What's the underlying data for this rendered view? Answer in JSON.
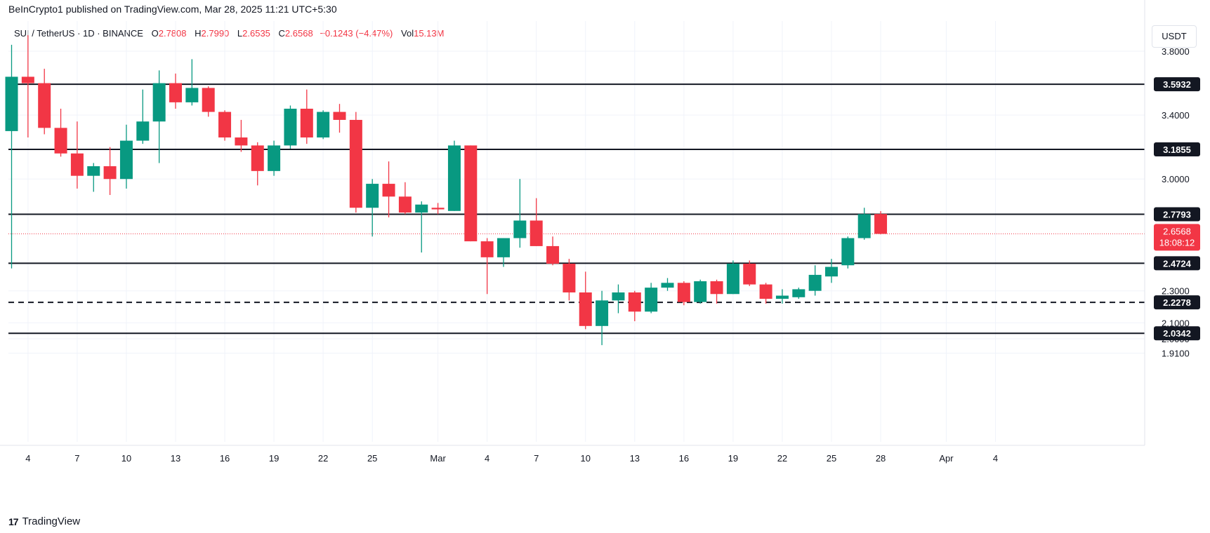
{
  "header": {
    "published_text": "BeInCrypto1 published on TradingView.com, Mar 28, 2025 11:21 UTC+5:30"
  },
  "legend": {
    "symbol": "SUI / TetherUS · 1D · BINANCE",
    "o_label": "O",
    "o_value": "2.7808",
    "h_label": "H",
    "h_value": "2.7990",
    "l_label": "L",
    "l_value": "2.6535",
    "c_label": "C",
    "c_value": "2.6568",
    "change": "−0.1243 (−4.47%)",
    "vol_label": "Vol",
    "vol_value": "15.13M"
  },
  "price_unit": "USDT",
  "footer": {
    "logo_text": "TradingView",
    "logo_mark": "17"
  },
  "colors": {
    "up": "#089981",
    "down": "#f23645",
    "line": "#131722",
    "grid": "#f0f3fa"
  },
  "chart_data": {
    "type": "candlestick",
    "ylim": [
      1.83,
      3.96
    ],
    "yticks": [
      "3.8000",
      "3.4000",
      "3.0000",
      "2.3000",
      "2.1000",
      "2.0000",
      "1.9100"
    ],
    "xticks": [
      {
        "label": "4",
        "day": 4
      },
      {
        "label": "7",
        "day": 7
      },
      {
        "label": "10",
        "day": 10
      },
      {
        "label": "13",
        "day": 13
      },
      {
        "label": "16",
        "day": 16
      },
      {
        "label": "19",
        "day": 19
      },
      {
        "label": "22",
        "day": 22
      },
      {
        "label": "25",
        "day": 25
      },
      {
        "label": "Mar",
        "day": 29
      },
      {
        "label": "4",
        "day": 32
      },
      {
        "label": "7",
        "day": 35
      },
      {
        "label": "10",
        "day": 38
      },
      {
        "label": "13",
        "day": 41
      },
      {
        "label": "16",
        "day": 44
      },
      {
        "label": "19",
        "day": 47
      },
      {
        "label": "22",
        "day": 50
      },
      {
        "label": "25",
        "day": 53
      },
      {
        "label": "28",
        "day": 56
      },
      {
        "label": "Apr",
        "day": 60
      },
      {
        "label": "4",
        "day": 63
      }
    ],
    "horizontal_levels": [
      {
        "value": 3.5932,
        "label": "3.5932",
        "style": "solid"
      },
      {
        "value": 3.1855,
        "label": "3.1855",
        "style": "solid"
      },
      {
        "value": 2.7793,
        "label": "2.7793",
        "style": "solid"
      },
      {
        "value": 2.4724,
        "label": "2.4724",
        "style": "solid"
      },
      {
        "value": 2.2278,
        "label": "2.2278",
        "style": "dashed"
      },
      {
        "value": 2.0342,
        "label": "2.0342",
        "style": "solid"
      }
    ],
    "last_price": {
      "value": 2.6568,
      "label": "2.6568",
      "countdown": "18:08:12"
    },
    "candles": [
      {
        "day": 3,
        "o": 3.3,
        "h": 3.84,
        "l": 2.44,
        "c": 3.64
      },
      {
        "day": 4,
        "o": 3.64,
        "h": 3.9,
        "l": 3.26,
        "c": 3.6
      },
      {
        "day": 5,
        "o": 3.6,
        "h": 3.69,
        "l": 3.28,
        "c": 3.32
      },
      {
        "day": 6,
        "o": 3.32,
        "h": 3.44,
        "l": 3.14,
        "c": 3.16
      },
      {
        "day": 7,
        "o": 3.16,
        "h": 3.36,
        "l": 2.94,
        "c": 3.02
      },
      {
        "day": 8,
        "o": 3.02,
        "h": 3.1,
        "l": 2.92,
        "c": 3.08
      },
      {
        "day": 9,
        "o": 3.08,
        "h": 3.2,
        "l": 2.9,
        "c": 3.0
      },
      {
        "day": 10,
        "o": 3.0,
        "h": 3.34,
        "l": 2.94,
        "c": 3.24
      },
      {
        "day": 11,
        "o": 3.24,
        "h": 3.56,
        "l": 3.22,
        "c": 3.36
      },
      {
        "day": 12,
        "o": 3.36,
        "h": 3.68,
        "l": 3.1,
        "c": 3.6
      },
      {
        "day": 13,
        "o": 3.6,
        "h": 3.66,
        "l": 3.44,
        "c": 3.48
      },
      {
        "day": 14,
        "o": 3.48,
        "h": 3.75,
        "l": 3.46,
        "c": 3.57
      },
      {
        "day": 15,
        "o": 3.57,
        "h": 3.58,
        "l": 3.39,
        "c": 3.42
      },
      {
        "day": 16,
        "o": 3.42,
        "h": 3.43,
        "l": 3.24,
        "c": 3.26
      },
      {
        "day": 17,
        "o": 3.26,
        "h": 3.37,
        "l": 3.17,
        "c": 3.21
      },
      {
        "day": 18,
        "o": 3.21,
        "h": 3.23,
        "l": 2.96,
        "c": 3.05
      },
      {
        "day": 19,
        "o": 3.05,
        "h": 3.24,
        "l": 3.02,
        "c": 3.21
      },
      {
        "day": 20,
        "o": 3.21,
        "h": 3.46,
        "l": 3.19,
        "c": 3.44
      },
      {
        "day": 21,
        "o": 3.44,
        "h": 3.56,
        "l": 3.22,
        "c": 3.26
      },
      {
        "day": 22,
        "o": 3.26,
        "h": 3.43,
        "l": 3.25,
        "c": 3.42
      },
      {
        "day": 23,
        "o": 3.42,
        "h": 3.47,
        "l": 3.29,
        "c": 3.37
      },
      {
        "day": 24,
        "o": 3.37,
        "h": 3.42,
        "l": 2.79,
        "c": 2.82
      },
      {
        "day": 25,
        "o": 2.82,
        "h": 3.0,
        "l": 2.64,
        "c": 2.97
      },
      {
        "day": 26,
        "o": 2.97,
        "h": 3.11,
        "l": 2.76,
        "c": 2.89
      },
      {
        "day": 27,
        "o": 2.89,
        "h": 2.98,
        "l": 2.78,
        "c": 2.79
      },
      {
        "day": 28,
        "o": 2.79,
        "h": 2.86,
        "l": 2.54,
        "c": 2.84
      },
      {
        "day": 29,
        "o": 2.82,
        "h": 2.85,
        "l": 2.78,
        "c": 2.81
      },
      {
        "day": 30,
        "o": 2.8,
        "h": 3.24,
        "l": 2.8,
        "c": 3.21
      },
      {
        "day": 31,
        "o": 3.21,
        "h": 3.21,
        "l": 2.61,
        "c": 2.61
      },
      {
        "day": 32,
        "o": 2.61,
        "h": 2.63,
        "l": 2.28,
        "c": 2.51
      },
      {
        "day": 33,
        "o": 2.51,
        "h": 2.63,
        "l": 2.45,
        "c": 2.63
      },
      {
        "day": 34,
        "o": 2.63,
        "h": 3.0,
        "l": 2.57,
        "c": 2.74
      },
      {
        "day": 35,
        "o": 2.74,
        "h": 2.88,
        "l": 2.58,
        "c": 2.58
      },
      {
        "day": 36,
        "o": 2.58,
        "h": 2.64,
        "l": 2.46,
        "c": 2.47
      },
      {
        "day": 37,
        "o": 2.47,
        "h": 2.5,
        "l": 2.24,
        "c": 2.29
      },
      {
        "day": 38,
        "o": 2.29,
        "h": 2.42,
        "l": 2.06,
        "c": 2.08
      },
      {
        "day": 39,
        "o": 2.08,
        "h": 2.3,
        "l": 1.96,
        "c": 2.24
      },
      {
        "day": 40,
        "o": 2.24,
        "h": 2.34,
        "l": 2.16,
        "c": 2.29
      },
      {
        "day": 41,
        "o": 2.29,
        "h": 2.3,
        "l": 2.11,
        "c": 2.17
      },
      {
        "day": 42,
        "o": 2.17,
        "h": 2.35,
        "l": 2.16,
        "c": 2.32
      },
      {
        "day": 43,
        "o": 2.32,
        "h": 2.38,
        "l": 2.3,
        "c": 2.35
      },
      {
        "day": 44,
        "o": 2.35,
        "h": 2.36,
        "l": 2.21,
        "c": 2.23
      },
      {
        "day": 45,
        "o": 2.23,
        "h": 2.37,
        "l": 2.22,
        "c": 2.36
      },
      {
        "day": 46,
        "o": 2.36,
        "h": 2.37,
        "l": 2.22,
        "c": 2.28
      },
      {
        "day": 47,
        "o": 2.28,
        "h": 2.49,
        "l": 2.28,
        "c": 2.47
      },
      {
        "day": 48,
        "o": 2.47,
        "h": 2.49,
        "l": 2.33,
        "c": 2.34
      },
      {
        "day": 49,
        "o": 2.34,
        "h": 2.35,
        "l": 2.22,
        "c": 2.25
      },
      {
        "day": 50,
        "o": 2.25,
        "h": 2.31,
        "l": 2.22,
        "c": 2.27
      },
      {
        "day": 51,
        "o": 2.26,
        "h": 2.32,
        "l": 2.25,
        "c": 2.31
      },
      {
        "day": 52,
        "o": 2.3,
        "h": 2.46,
        "l": 2.27,
        "c": 2.4
      },
      {
        "day": 53,
        "o": 2.39,
        "h": 2.5,
        "l": 2.35,
        "c": 2.45
      },
      {
        "day": 54,
        "o": 2.46,
        "h": 2.64,
        "l": 2.44,
        "c": 2.63
      },
      {
        "day": 55,
        "o": 2.63,
        "h": 2.82,
        "l": 2.62,
        "c": 2.78
      },
      {
        "day": 56,
        "o": 2.7808,
        "h": 2.799,
        "l": 2.6535,
        "c": 2.6568
      }
    ]
  }
}
